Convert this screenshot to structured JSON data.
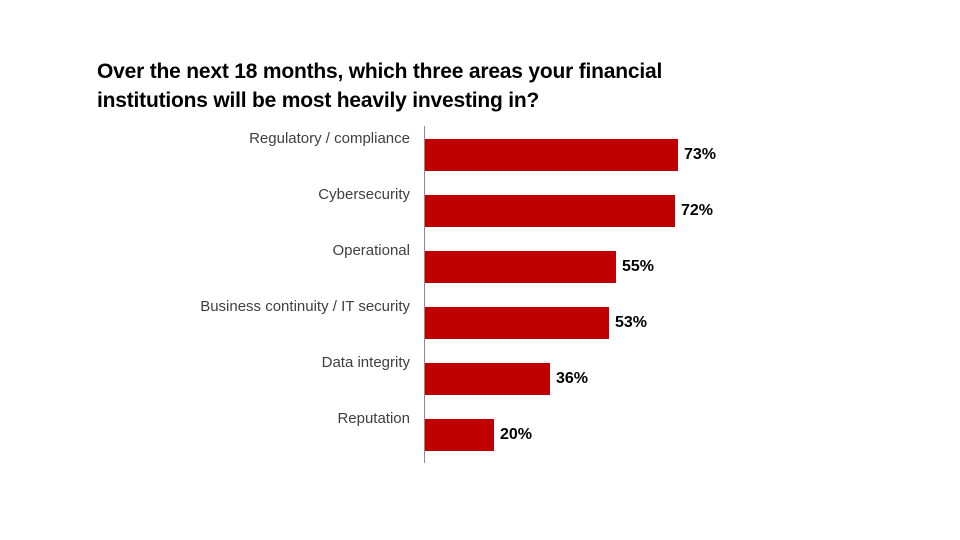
{
  "header": {
    "title_line1": "Over the next 18 months, which three areas your financial",
    "title_line2": "institutions will be most heavily investing in?"
  },
  "chart_data": {
    "type": "bar",
    "orientation": "horizontal",
    "title": "Over the next 18 months, which three areas your financial institutions will be most heavily investing in?",
    "categories": [
      "Regulatory / compliance",
      "Cybersecurity",
      "Operational",
      "Business continuity / IT security",
      "Data integrity",
      "Reputation"
    ],
    "values": [
      73,
      72,
      55,
      53,
      36,
      20
    ],
    "value_labels": [
      "73%",
      "72%",
      "55%",
      "53%",
      "36%",
      "20%"
    ],
    "xlim": [
      0,
      100
    ],
    "grid": false,
    "legend": false,
    "bar_color": "#C00000",
    "axis_color": "#8C8C8C",
    "category_label_color": "#3F3F3F",
    "value_label_color": "#000000"
  }
}
